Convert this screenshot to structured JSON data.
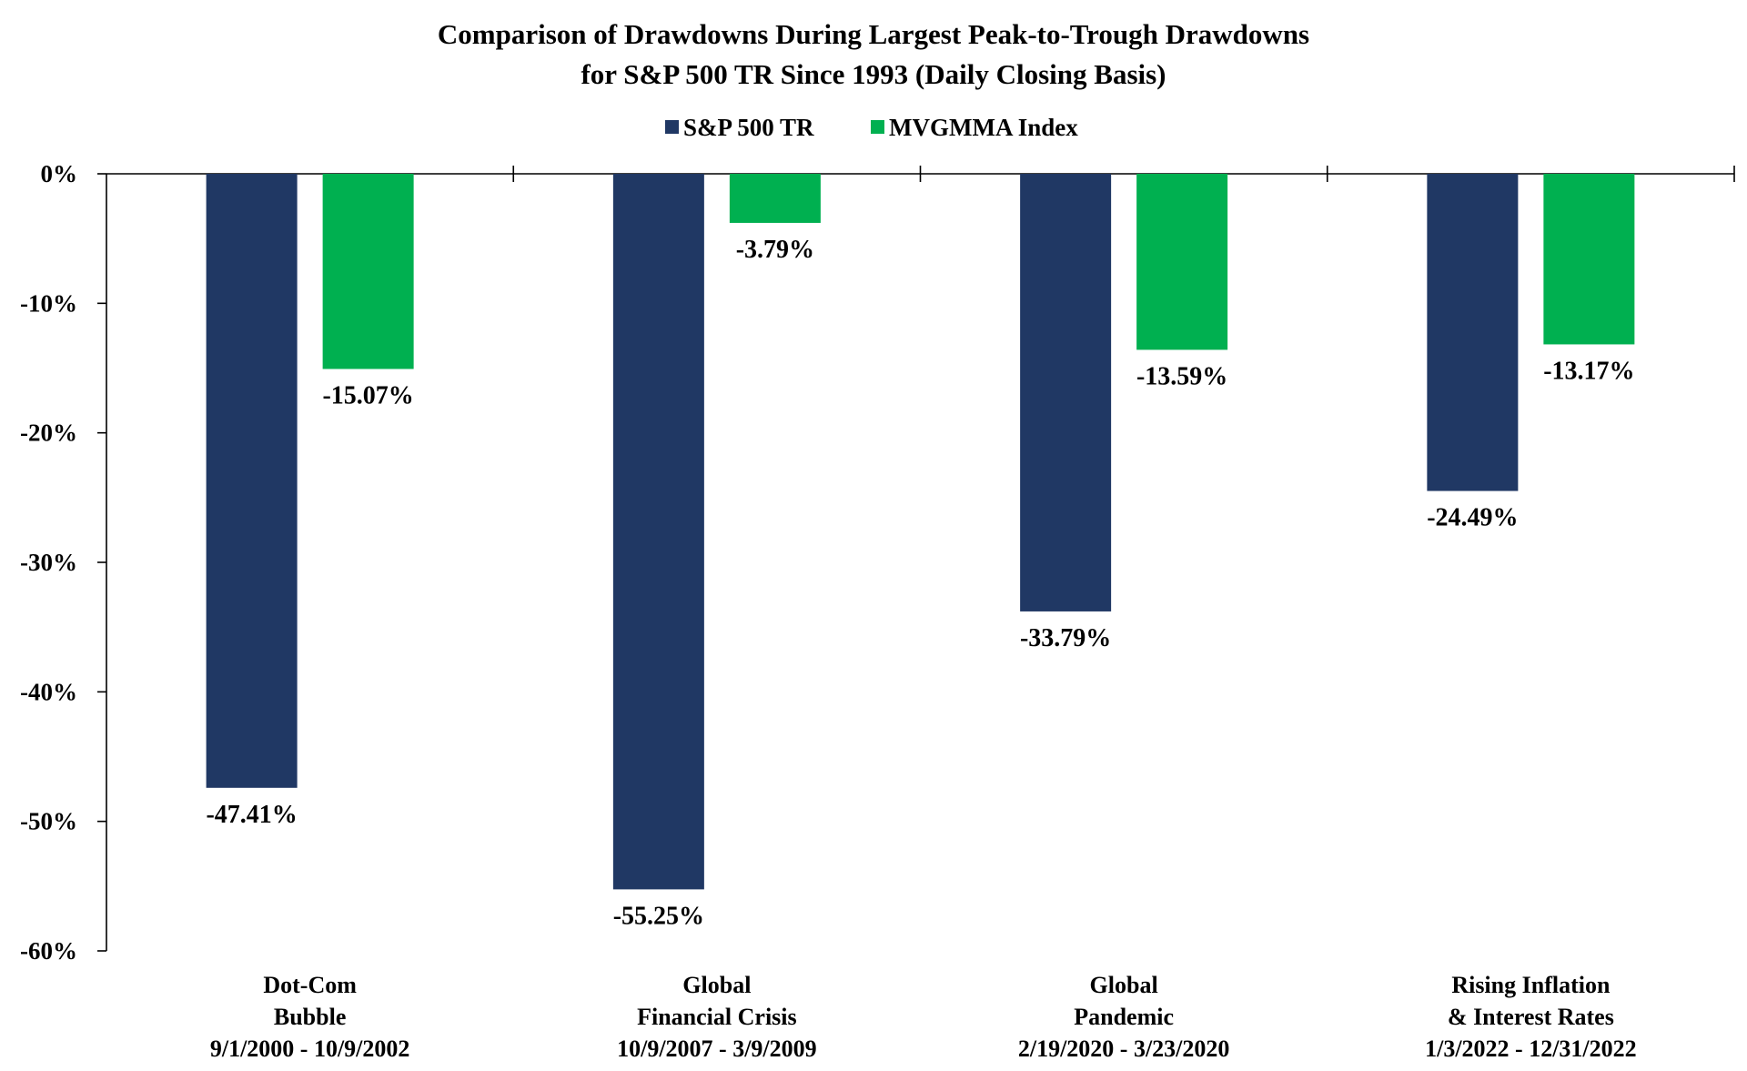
{
  "chart_data": {
    "type": "bar",
    "title": "Comparison of Drawdowns During Largest Peak-to-Trough Drawdowns",
    "subtitle": "for S&P 500 TR Since 1993 (Daily Closing Basis)",
    "categories": [
      [
        "Dot-Com",
        "Bubble",
        "9/1/2000 - 10/9/2002"
      ],
      [
        "Global",
        "Financial Crisis",
        "10/9/2007 - 3/9/2009"
      ],
      [
        "Global",
        "Pandemic",
        "2/19/2020 - 3/23/2020"
      ],
      [
        "Rising Inflation",
        "& Interest Rates",
        "1/3/2022 - 12/31/2022"
      ]
    ],
    "series": [
      {
        "name": "S&P 500 TR",
        "color": "#203864",
        "values": [
          -47.41,
          -55.25,
          -33.79,
          -24.49
        ],
        "labels": [
          "-47.41%",
          "-55.25%",
          "-33.79%",
          "-24.49%"
        ]
      },
      {
        "name": "MVGMMA Index",
        "color": "#00B050",
        "values": [
          -15.07,
          -3.79,
          -13.59,
          -13.17
        ],
        "labels": [
          "-15.07%",
          "-3.79%",
          "-13.59%",
          "-13.17%"
        ]
      }
    ],
    "ylim": [
      -60,
      0
    ],
    "yticks": [
      0,
      -10,
      -20,
      -30,
      -40,
      -50,
      -60
    ],
    "ytick_labels": [
      "0%",
      "-10%",
      "-20%",
      "-30%",
      "-40%",
      "-50%",
      "-60%"
    ],
    "legend_position": "top-center",
    "grid": false
  }
}
